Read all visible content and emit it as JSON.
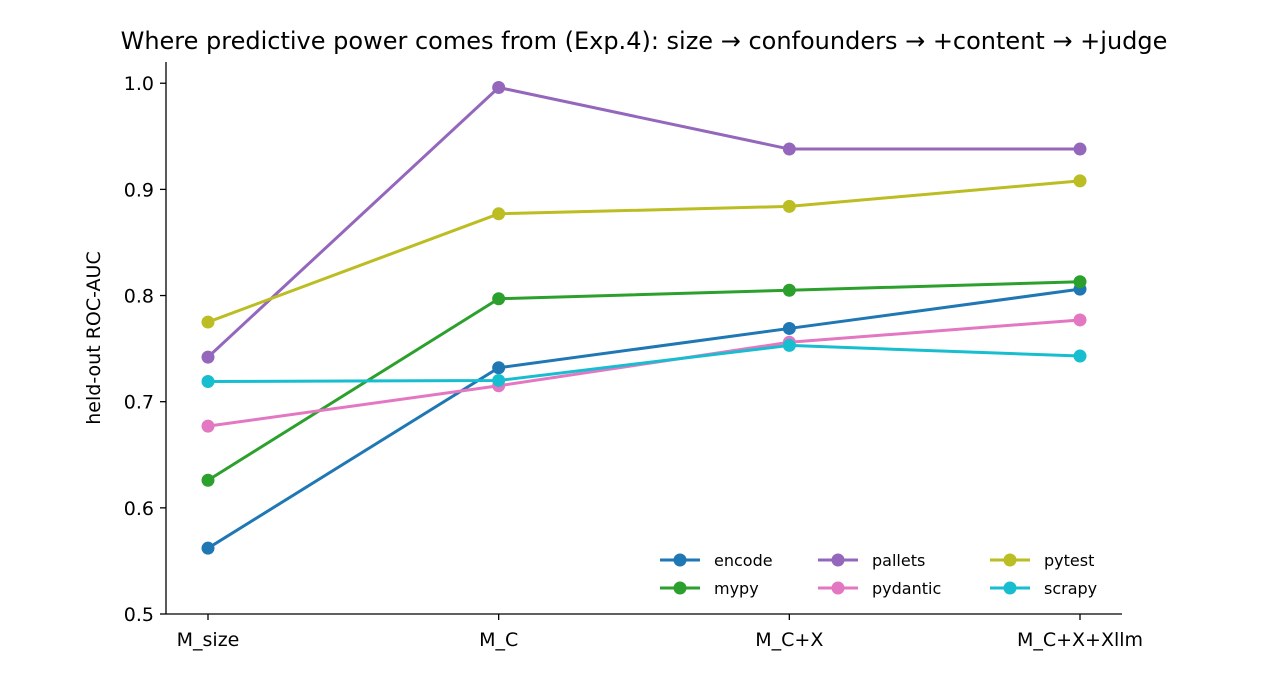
{
  "chart_data": {
    "type": "line",
    "title": "Where predictive power comes from (Exp.4): size → confounders → +content → +judge",
    "xlabel": "",
    "ylabel": "held-out ROC-AUC",
    "categories": [
      "M_size",
      "M_C",
      "M_C+X",
      "M_C+X+Xllm"
    ],
    "ylim": [
      0.5,
      1.02
    ],
    "yticks": [
      "0.5",
      "0.6",
      "0.7",
      "0.8",
      "0.9",
      "1.0"
    ],
    "grid": false,
    "legend_position": "lower-right",
    "series": [
      {
        "name": "encode",
        "color": "#1f77b4",
        "values": [
          0.562,
          0.732,
          0.769,
          0.806
        ]
      },
      {
        "name": "mypy",
        "color": "#2ca02c",
        "values": [
          0.626,
          0.797,
          0.805,
          0.813
        ]
      },
      {
        "name": "pallets",
        "color": "#9467bd",
        "values": [
          0.742,
          0.996,
          0.938,
          0.938
        ]
      },
      {
        "name": "pydantic",
        "color": "#e377c2",
        "values": [
          0.677,
          0.715,
          0.756,
          0.777
        ]
      },
      {
        "name": "pytest",
        "color": "#bcbd22",
        "values": [
          0.775,
          0.877,
          0.884,
          0.908
        ]
      },
      {
        "name": "scrapy",
        "color": "#17becf",
        "values": [
          0.719,
          0.72,
          0.753,
          0.743
        ]
      }
    ]
  }
}
